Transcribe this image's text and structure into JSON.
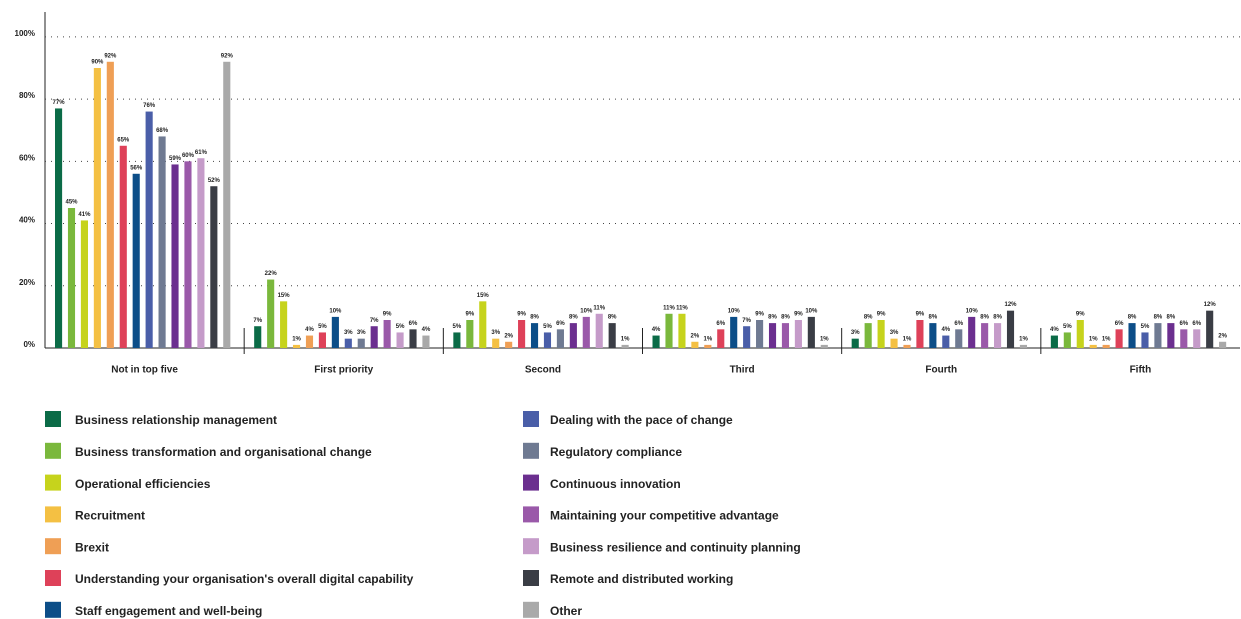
{
  "chart_data": {
    "type": "bar",
    "categories": [
      "Not in top five",
      "First priority",
      "Second",
      "Third",
      "Fourth",
      "Fifth"
    ],
    "ylim": [
      0,
      108
    ],
    "yticks": [
      {
        "value": 0,
        "label": "0%"
      },
      {
        "value": 20,
        "label": "20%"
      },
      {
        "value": 40,
        "label": "40%"
      },
      {
        "value": 60,
        "label": "60%"
      },
      {
        "value": 80,
        "label": "80%"
      },
      {
        "value": 100,
        "label": "100%"
      }
    ],
    "grid": true,
    "series": [
      {
        "name": "Business relationship management",
        "color": "#0b6b47",
        "values": [
          77,
          7,
          5,
          4,
          3,
          4
        ],
        "value_labels": [
          "77%",
          "7%",
          "5%",
          "4%",
          "3%",
          "4%"
        ]
      },
      {
        "name": "Business transformation and organisational change",
        "color": "#7ab83c",
        "values": [
          45,
          22,
          9,
          11,
          8,
          5
        ],
        "value_labels": [
          "45%",
          "22%",
          "9%",
          "11%",
          "8%",
          "5%"
        ]
      },
      {
        "name": "Operational efficiencies",
        "color": "#c6d31c",
        "values": [
          41,
          15,
          15,
          11,
          9,
          9
        ],
        "value_labels": [
          "41%",
          "15%",
          "15%",
          "11%",
          "9%",
          "9%"
        ]
      },
      {
        "name": "Recruitment",
        "color": "#f4c043",
        "values": [
          90,
          1,
          3,
          2,
          3,
          1
        ],
        "value_labels": [
          "90%",
          "1%",
          "3%",
          "2%",
          "3%",
          "1%"
        ]
      },
      {
        "name": "Brexit",
        "color": "#ef9f55",
        "values": [
          92,
          4,
          2,
          1,
          1,
          1
        ],
        "value_labels": [
          "92%",
          "4%",
          "2%",
          "1%",
          "1%",
          "1%"
        ]
      },
      {
        "name": "Understanding your organisation's overall digital capability",
        "color": "#de4159",
        "values": [
          65,
          5,
          9,
          6,
          9,
          6
        ],
        "value_labels": [
          "65%",
          "5%",
          "9%",
          "6%",
          "9%",
          "6%"
        ]
      },
      {
        "name": "Staff engagement and well-being",
        "color": "#0c4e88",
        "values": [
          56,
          10,
          8,
          10,
          8,
          8
        ],
        "value_labels": [
          "56%",
          "10%",
          "8%",
          "10%",
          "8%",
          "8%"
        ]
      },
      {
        "name": "Dealing with the pace of change",
        "color": "#4a5ea8",
        "values": [
          76,
          3,
          5,
          7,
          4,
          5
        ],
        "value_labels": [
          "76%",
          "3%",
          "5%",
          "7%",
          "4%",
          "5%"
        ]
      },
      {
        "name": "Regulatory compliance",
        "color": "#6f7a92",
        "values": [
          68,
          3,
          6,
          9,
          6,
          8
        ],
        "value_labels": [
          "68%",
          "3%",
          "6%",
          "9%",
          "6%",
          "8%"
        ]
      },
      {
        "name": "Continuous innovation",
        "color": "#6b2f8f",
        "values": [
          59,
          7,
          8,
          8,
          10,
          8
        ],
        "value_labels": [
          "59%",
          "7%",
          "8%",
          "8%",
          "10%",
          "8%"
        ]
      },
      {
        "name": "Maintaining your competitive advantage",
        "color": "#9a59a9",
        "values": [
          60,
          9,
          10,
          8,
          8,
          6
        ],
        "value_labels": [
          "60%",
          "9%",
          "10%",
          "8%",
          "8%",
          "6%"
        ]
      },
      {
        "name": "Business resilience and continuity planning",
        "color": "#c59bc9",
        "values": [
          61,
          5,
          11,
          9,
          8,
          6
        ],
        "value_labels": [
          "61%",
          "5%",
          "11%",
          "9%",
          "8%",
          "6%"
        ]
      },
      {
        "name": "Remote and distributed working",
        "color": "#3a3d45",
        "values": [
          52,
          6,
          8,
          10,
          12,
          12
        ],
        "value_labels": [
          "52%",
          "6%",
          "8%",
          "10%",
          "12%",
          "12%"
        ]
      },
      {
        "name": "Other",
        "color": "#a9a9a9",
        "values": [
          92,
          4,
          1,
          1,
          1,
          2
        ],
        "value_labels": [
          "92%",
          "4%",
          "1%",
          "1%",
          "1%",
          "2%"
        ]
      }
    ]
  }
}
